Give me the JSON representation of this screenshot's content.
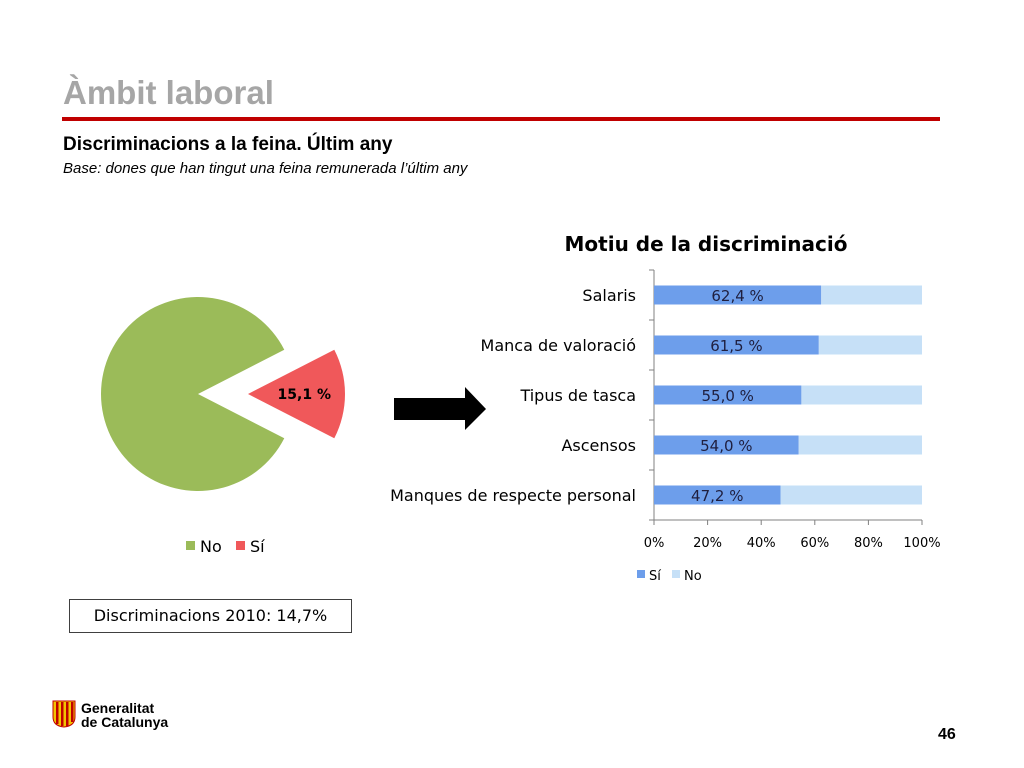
{
  "header": {
    "title": "Àmbit laboral",
    "subtitle": "Discriminacions a la feina. Últim any",
    "base": "Base: dones que han tingut una feina remunerada l’últim any"
  },
  "colors": {
    "pie_no": "#9bbb59",
    "pie_si": "#f0585a",
    "bar_si": "#6d9eeb",
    "bar_no": "#c6e0f7",
    "rule": "#c00000",
    "title": "#a6a6a6"
  },
  "chart_data": [
    {
      "type": "pie",
      "categories": [
        "No",
        "Sí"
      ],
      "values": [
        84.9,
        15.1
      ],
      "data_labels": [
        "",
        "15,1 %"
      ],
      "legend": [
        "No",
        "Sí"
      ],
      "legend_position": "bottom",
      "exploded_slice": "Sí"
    },
    {
      "type": "bar",
      "orientation": "horizontal",
      "stacked": "percent",
      "title": "Motiu de la discriminació",
      "categories": [
        "Salaris",
        "Manca de valoració",
        "Tipus de tasca",
        "Ascensos",
        "Manques de respecte personal"
      ],
      "series": [
        {
          "name": "Sí",
          "values": [
            62.4,
            61.5,
            55.0,
            54.0,
            47.2
          ],
          "data_labels": [
            "62,4 %",
            "61,5 %",
            "55,0 %",
            "54,0 %",
            "47,2 %"
          ]
        },
        {
          "name": "No",
          "values": [
            37.6,
            38.5,
            45.0,
            46.0,
            52.8
          ]
        }
      ],
      "x_ticks": [
        "0%",
        "20%",
        "40%",
        "60%",
        "80%",
        "100%"
      ],
      "xlim": [
        0,
        100
      ],
      "legend_position": "bottom",
      "grid": false
    }
  ],
  "note": "Discriminacions 2010: 14,7%",
  "footer": {
    "logo_line1": "Generalitat",
    "logo_line2": "de Catalunya",
    "page_number": "46"
  },
  "icons": {
    "arrow": "arrow-right-icon",
    "logo": "generalitat-logo-icon"
  }
}
